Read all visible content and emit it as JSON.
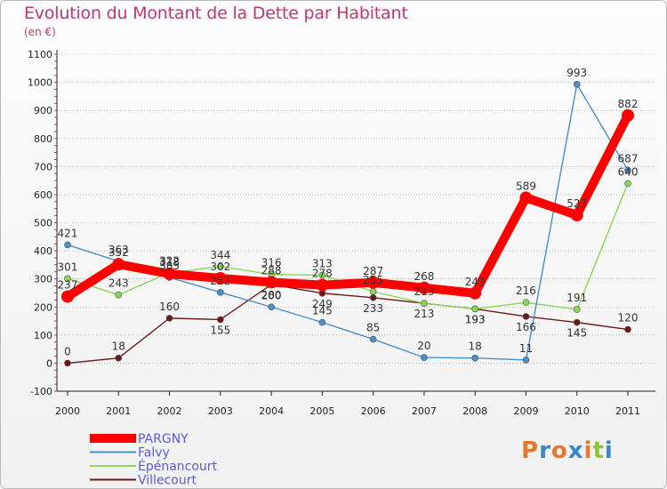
{
  "title": "Evolution du Montant de la Dette par Habitant",
  "subtitle": "(en €)",
  "logo_text": "Proxiti",
  "colors": {
    "title": "#c4366e",
    "legend_text": "#5a5ae6",
    "axis": "#222222",
    "grid": "#9a9a9a",
    "label": "#333333",
    "logo": [
      "#e8772e",
      "#3a87c8",
      "#e8772e",
      "#3a87c8",
      "#e8772e",
      "#8cc63f",
      "#3a87c8"
    ]
  },
  "chart_data": {
    "type": "line",
    "title": "Evolution du Montant de la Dette par Habitant",
    "ylabel": "(en €)",
    "x": [
      "2000",
      "2001",
      "2002",
      "2003",
      "2004",
      "2005",
      "2006",
      "2007",
      "2008",
      "2009",
      "2010",
      "2011"
    ],
    "ylim": [
      -100,
      1100
    ],
    "yticks": [
      -100,
      0,
      100,
      200,
      300,
      400,
      500,
      600,
      700,
      800,
      900,
      1000,
      1100
    ],
    "grid": "horizontal dotted",
    "legend_position": "bottom-left",
    "series": [
      {
        "name": "PARGNY",
        "color": "#ff0000",
        "values": [
          237,
          352,
          318,
          302,
          288,
          278,
          287,
          268,
          249,
          589,
          527,
          882
        ]
      },
      {
        "name": "Falvy",
        "color": "#4a90c8",
        "values": [
          421,
          363,
          305,
          252,
          200,
          145,
          85,
          20,
          18,
          11,
          993,
          687
        ]
      },
      {
        "name": "Épénancourt",
        "color": "#88d855",
        "values": [
          301,
          243,
          322,
          344,
          316,
          313,
          255,
          213,
          193,
          216,
          191,
          640
        ]
      },
      {
        "name": "Villecourt",
        "color": "#6b1a1a",
        "values": [
          0,
          18,
          160,
          155,
          280,
          249,
          233,
          213,
          193,
          166,
          145,
          120
        ]
      }
    ]
  }
}
